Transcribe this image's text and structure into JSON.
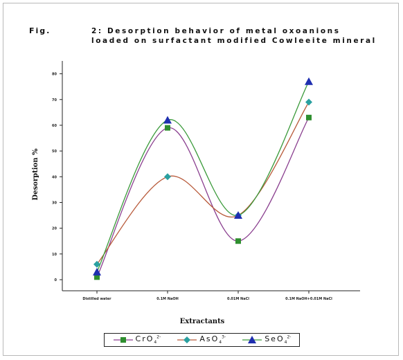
{
  "figure": {
    "label": "Fig.",
    "title": "2: Desorption behavior of metal oxoanions loaded on surfactant modified Cowleeite mineral"
  },
  "chart_data": {
    "type": "line",
    "xlabel": "Extractants",
    "ylabel": "Desorption %",
    "categories": [
      "Distilled water",
      "0.1M NaOH",
      "0.01M NaCl",
      "0.1M NaOH+0.01M NaCl"
    ],
    "ylim": [
      0,
      85
    ],
    "yticks": [
      0,
      10,
      20,
      30,
      40,
      50,
      60,
      70,
      80
    ],
    "grid": false,
    "legend_position": "bottom",
    "series": [
      {
        "name": "CrO4 2-",
        "label": "CrO",
        "sub": "4",
        "sup": "2-",
        "color": "#8a3f8f",
        "marker_color": "#2f8f2f",
        "marker": "square",
        "values": [
          1,
          59,
          15,
          63
        ]
      },
      {
        "name": "AsO4 3-",
        "label": "AsO",
        "sub": "4",
        "sup": "3-",
        "color": "#b85a3a",
        "marker_color": "#2aa0a0",
        "marker": "diamond",
        "values": [
          6,
          40,
          25,
          69
        ]
      },
      {
        "name": "SeO4 2-",
        "label": "SeO",
        "sub": "4",
        "sup": "2-",
        "color": "#3a9a3a",
        "marker_color": "#1f2fb0",
        "marker": "triangle",
        "values": [
          3,
          62,
          25,
          77
        ]
      }
    ]
  }
}
